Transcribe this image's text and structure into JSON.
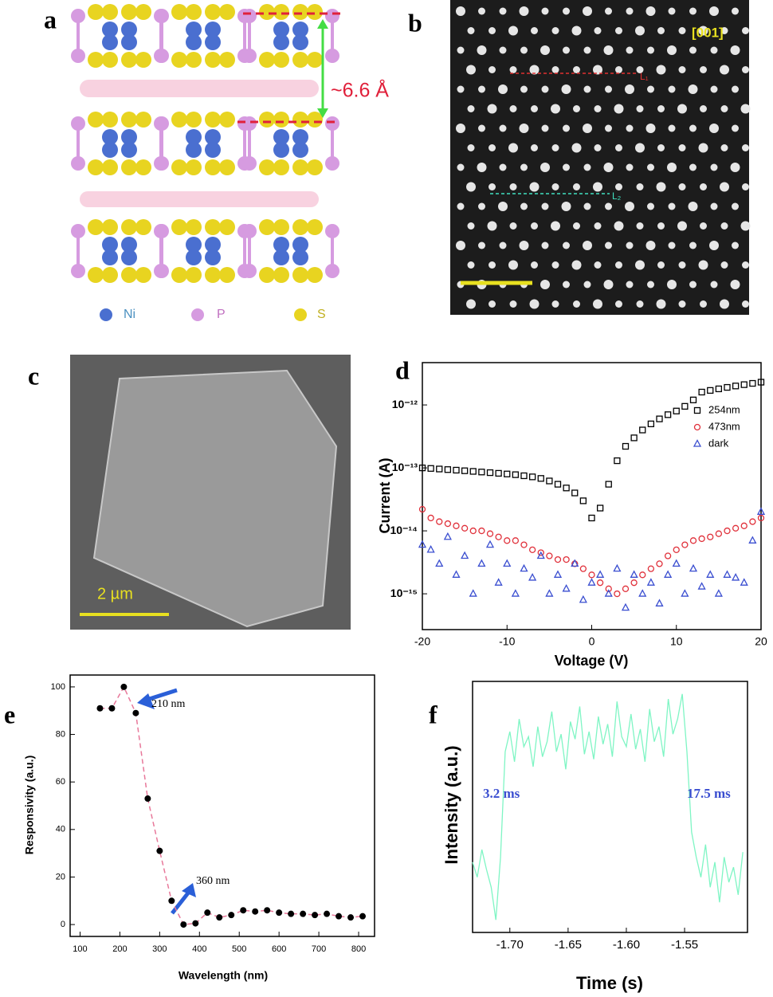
{
  "figure": {
    "panel_labels": [
      "a",
      "b",
      "c",
      "d",
      "e",
      "f"
    ],
    "a": {
      "legend": [
        "Ni",
        "P",
        "S"
      ],
      "spacing_label": "~6.6 Å"
    },
    "b": {
      "zone_axis": "[001]",
      "line_labels": [
        "L₁",
        "L₂"
      ]
    },
    "c": {
      "scale_bar": "2 µm"
    }
  },
  "chart_data": [
    {
      "type": "scatter",
      "x_label": "Voltage (V)",
      "y_label": "Current (A)",
      "x": [
        -20,
        -19,
        -18,
        -17,
        -16,
        -15,
        -14,
        -13,
        -12,
        -11,
        -10,
        -9,
        -8,
        -7,
        -6,
        -5,
        -4,
        -3,
        -2,
        -1,
        0,
        1,
        2,
        3,
        4,
        5,
        6,
        7,
        8,
        9,
        10,
        11,
        12,
        13,
        14,
        15,
        16,
        17,
        18,
        19,
        20
      ],
      "xlim": [
        -20,
        20
      ],
      "xticks": [
        -20,
        -10,
        0,
        10,
        20
      ],
      "ylim": [
        2.7e-16,
        4.7e-12
      ],
      "log_y": true,
      "yticks": [
        {
          "value": 1e-12,
          "label": "10⁻¹²"
        },
        {
          "value": 1e-13,
          "label": "10⁻¹³"
        },
        {
          "value": 1e-14,
          "label": "10⁻¹⁴"
        },
        {
          "value": 1e-15,
          "label": "10⁻¹⁵"
        }
      ],
      "legend": "upper right",
      "series": [
        {
          "name": "254nm",
          "color": "#000000",
          "marker": "square",
          "values": [
            1e-13,
            9.8e-14,
            9.6e-14,
            9.4e-14,
            9.2e-14,
            9e-14,
            8.8e-14,
            8.6e-14,
            8.4e-14,
            8.2e-14,
            8e-14,
            7.8e-14,
            7.5e-14,
            7.2e-14,
            6.8e-14,
            6.2e-14,
            5.5e-14,
            4.8e-14,
            4e-14,
            3e-14,
            1.6e-14,
            2.3e-14,
            5.5e-14,
            1.3e-13,
            2.2e-13,
            3e-13,
            4e-13,
            5e-13,
            6e-13,
            7e-13,
            8e-13,
            9.5e-13,
            1.2e-12,
            1.6e-12,
            1.7e-12,
            1.8e-12,
            1.9e-12,
            2e-12,
            2.1e-12,
            2.2e-12,
            2.3e-12
          ]
        },
        {
          "name": "473nm",
          "color": "#e0303a",
          "marker": "circle",
          "values": [
            2.2e-14,
            1.6e-14,
            1.4e-14,
            1.3e-14,
            1.2e-14,
            1.1e-14,
            1e-14,
            1e-14,
            9e-15,
            8e-15,
            7e-15,
            7e-15,
            6e-15,
            5e-15,
            4.5e-15,
            4e-15,
            3.5e-15,
            3.5e-15,
            3e-15,
            2.5e-15,
            2e-15,
            1.5e-15,
            1.2e-15,
            1e-15,
            1.2e-15,
            1.5e-15,
            2e-15,
            2.5e-15,
            3e-15,
            4e-15,
            5e-15,
            6e-15,
            7e-15,
            7.5e-15,
            8e-15,
            9e-15,
            1e-14,
            1.1e-14,
            1.2e-14,
            1.4e-14,
            1.6e-14
          ]
        },
        {
          "name": "dark",
          "color": "#3a4ed0",
          "marker": "triangle",
          "values": [
            6e-15,
            5e-15,
            3e-15,
            8e-15,
            2e-15,
            4e-15,
            1e-15,
            3e-15,
            6e-15,
            1.5e-15,
            3e-15,
            1e-15,
            2.5e-15,
            1.8e-15,
            4e-15,
            1e-15,
            2e-15,
            1.2e-15,
            3e-15,
            8e-16,
            1.5e-15,
            2e-15,
            1e-15,
            2.5e-15,
            6e-16,
            2e-15,
            1e-15,
            1.5e-15,
            7e-16,
            2e-15,
            3e-15,
            1e-15,
            2.5e-15,
            1.3e-15,
            2e-15,
            1e-15,
            2e-15,
            1.8e-15,
            1.5e-15,
            7e-15,
            2e-14
          ]
        }
      ]
    },
    {
      "type": "line",
      "x_label": "Wavelength (nm)",
      "y_label": "Responsivity (a.u.)",
      "x": [
        150,
        180,
        210,
        240,
        270,
        300,
        330,
        360,
        390,
        420,
        450,
        480,
        510,
        540,
        570,
        600,
        630,
        660,
        690,
        720,
        750,
        780,
        810
      ],
      "xlim": [
        75,
        840
      ],
      "xticks": [
        100,
        200,
        300,
        400,
        500,
        600,
        700,
        800
      ],
      "ylim": [
        -5,
        105
      ],
      "yticks": [
        0,
        20,
        40,
        60,
        80,
        100
      ],
      "series": [
        {
          "color": "#e8789a",
          "line_style": "dashed",
          "marker": "circle",
          "marker_color": "#000000",
          "values": [
            91,
            91,
            100,
            89,
            53,
            31,
            10,
            0,
            0.5,
            5,
            3,
            4,
            6,
            5.5,
            6,
            5,
            4.5,
            4.5,
            4,
            4.5,
            3.5,
            3,
            3.5
          ]
        }
      ],
      "annotations": [
        {
          "text": "210 nm"
        },
        {
          "text": "360 nm"
        }
      ]
    },
    {
      "type": "line",
      "x_label": "Time (s)",
      "y_label": "Intensity (a.u.)",
      "x": [
        -1.732,
        -1.728,
        -1.724,
        -1.72,
        -1.716,
        -1.712,
        -1.708,
        -1.704,
        -1.7,
        -1.696,
        -1.692,
        -1.688,
        -1.684,
        -1.68,
        -1.676,
        -1.672,
        -1.668,
        -1.664,
        -1.66,
        -1.656,
        -1.652,
        -1.648,
        -1.644,
        -1.64,
        -1.636,
        -1.632,
        -1.628,
        -1.624,
        -1.62,
        -1.616,
        -1.612,
        -1.608,
        -1.604,
        -1.6,
        -1.596,
        -1.592,
        -1.588,
        -1.584,
        -1.58,
        -1.576,
        -1.572,
        -1.568,
        -1.564,
        -1.56,
        -1.556,
        -1.552,
        -1.548,
        -1.544,
        -1.54,
        -1.536,
        -1.532,
        -1.528,
        -1.524,
        -1.52,
        -1.516,
        -1.512,
        -1.508,
        -1.504,
        -1.5
      ],
      "xlim": [
        -1.732,
        -1.496
      ],
      "xticks": [
        {
          "value": -1.7,
          "label": "-1.70"
        },
        -1.65,
        {
          "value": -1.6,
          "label": "-1.60"
        },
        -1.55
      ],
      "ylim": [
        0,
        1
      ],
      "series": [
        {
          "color": "#7ff5c4",
          "values": [
            0.28,
            0.22,
            0.33,
            0.25,
            0.18,
            0.05,
            0.3,
            0.72,
            0.8,
            0.68,
            0.85,
            0.74,
            0.78,
            0.66,
            0.82,
            0.7,
            0.76,
            0.88,
            0.72,
            0.79,
            0.65,
            0.84,
            0.77,
            0.9,
            0.71,
            0.8,
            0.69,
            0.86,
            0.75,
            0.83,
            0.7,
            0.92,
            0.78,
            0.74,
            0.87,
            0.73,
            0.81,
            0.68,
            0.89,
            0.76,
            0.82,
            0.7,
            0.93,
            0.79,
            0.85,
            0.95,
            0.72,
            0.4,
            0.3,
            0.22,
            0.35,
            0.18,
            0.28,
            0.12,
            0.3,
            0.2,
            0.26,
            0.15,
            0.32
          ]
        }
      ],
      "annotations": [
        {
          "text": "3.2 ms"
        },
        {
          "text": "17.5 ms"
        }
      ]
    }
  ]
}
